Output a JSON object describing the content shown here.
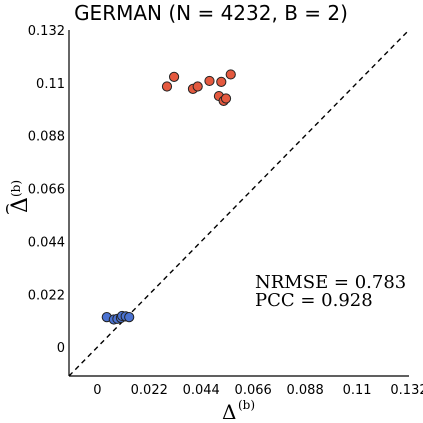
{
  "chart_data": {
    "type": "scatter",
    "title": "GERMAN (N = 4232, B = 2)",
    "xlabel": "Δ",
    "xlabel_sup": "(b)",
    "ylabel": "Δ",
    "ylabel_sup": "(b)",
    "xlim": [
      -0.012,
      0.132
    ],
    "ylim": [
      -0.012,
      0.132
    ],
    "x_ticks": [
      0,
      0.022,
      0.044,
      0.066,
      0.088,
      0.11,
      0.132
    ],
    "x_tick_labels": [
      "0",
      "0.022",
      "0.044",
      "0.066",
      "0.088",
      "0.11",
      "0.132"
    ],
    "y_ticks": [
      0,
      0.022,
      0.044,
      0.066,
      0.088,
      0.11,
      0.132
    ],
    "y_tick_labels": [
      "0",
      "0.022",
      "0.044",
      "0.066",
      "0.088",
      "0.11",
      "0.132"
    ],
    "grid": false,
    "reference_line": "y = x (dashed)",
    "annotations": {
      "nrmse": "NRMSE = 0.783",
      "pcc": "PCC = 0.928"
    },
    "series": [
      {
        "color": "#e4593f",
        "points": [
          {
            "x": 0.0295,
            "y": 0.1085
          },
          {
            "x": 0.0325,
            "y": 0.1125
          },
          {
            "x": 0.0405,
            "y": 0.1075
          },
          {
            "x": 0.0425,
            "y": 0.1085
          },
          {
            "x": 0.0475,
            "y": 0.1108
          },
          {
            "x": 0.0515,
            "y": 0.1045
          },
          {
            "x": 0.0525,
            "y": 0.1104
          },
          {
            "x": 0.0535,
            "y": 0.1025
          },
          {
            "x": 0.0545,
            "y": 0.1035
          },
          {
            "x": 0.0565,
            "y": 0.1135
          }
        ]
      },
      {
        "color": "#4a72d1",
        "points": [
          {
            "x": 0.004,
            "y": 0.0125
          },
          {
            "x": 0.007,
            "y": 0.0115
          },
          {
            "x": 0.0085,
            "y": 0.0118
          },
          {
            "x": 0.01,
            "y": 0.0122
          },
          {
            "x": 0.0105,
            "y": 0.013
          },
          {
            "x": 0.012,
            "y": 0.0128
          },
          {
            "x": 0.0135,
            "y": 0.0125
          }
        ]
      }
    ]
  }
}
